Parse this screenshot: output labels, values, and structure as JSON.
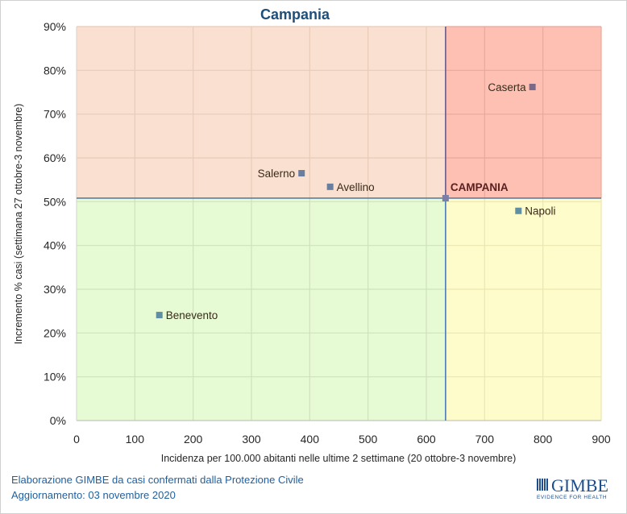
{
  "chart_data": {
    "type": "scatter",
    "title": "Campania",
    "xlabel": "Incidenza per 100.000 abitanti nelle ultime 2 settimane (20 ottobre-3 novembre)",
    "ylabel": "Incremento % casi (settimana 27 ottobre-3 novembre)",
    "xlim": [
      0,
      900
    ],
    "ylim": [
      0,
      90
    ],
    "x_ticks": [
      0,
      100,
      200,
      300,
      400,
      500,
      600,
      700,
      800,
      900
    ],
    "y_ticks": [
      0,
      10,
      20,
      30,
      40,
      50,
      60,
      70,
      80,
      90
    ],
    "x_tick_labels": [
      "0",
      "100",
      "200",
      "300",
      "400",
      "500",
      "600",
      "700",
      "800",
      "900"
    ],
    "y_tick_labels": [
      "0%",
      "10%",
      "20%",
      "30%",
      "40%",
      "50%",
      "60%",
      "70%",
      "80%",
      "90%"
    ],
    "grid": true,
    "reference": {
      "name": "CAMPANIA",
      "x": 633,
      "y": 50.8
    },
    "quadrants": {
      "top_left": "#fae0d0",
      "top_right": "#ffc0b4",
      "bottom_left": "#e6fad4",
      "bottom_right": "#fffccc"
    },
    "points": [
      {
        "name": "Caserta",
        "x": 782,
        "y": 76.2,
        "color": "#7a6a8a",
        "label_side": "left"
      },
      {
        "name": "Napoli",
        "x": 758,
        "y": 47.9,
        "color": "#5f8fa0",
        "label_side": "right"
      },
      {
        "name": "Salerno",
        "x": 386,
        "y": 56.5,
        "color": "#6a7fa0",
        "label_side": "left"
      },
      {
        "name": "Avellino",
        "x": 435,
        "y": 53.4,
        "color": "#6a7fa0",
        "label_side": "right"
      },
      {
        "name": "Benevento",
        "x": 142,
        "y": 24.1,
        "color": "#5f8fa0",
        "label_side": "right"
      }
    ]
  },
  "footer": {
    "line1": "Elaborazione GIMBE da casi confermati dalla Protezione Civile",
    "line2": "Aggiornamento: 03 novembre 2020"
  },
  "logo": {
    "name": "GIMBE",
    "tagline": "EVIDENCE FOR HEALTH"
  }
}
